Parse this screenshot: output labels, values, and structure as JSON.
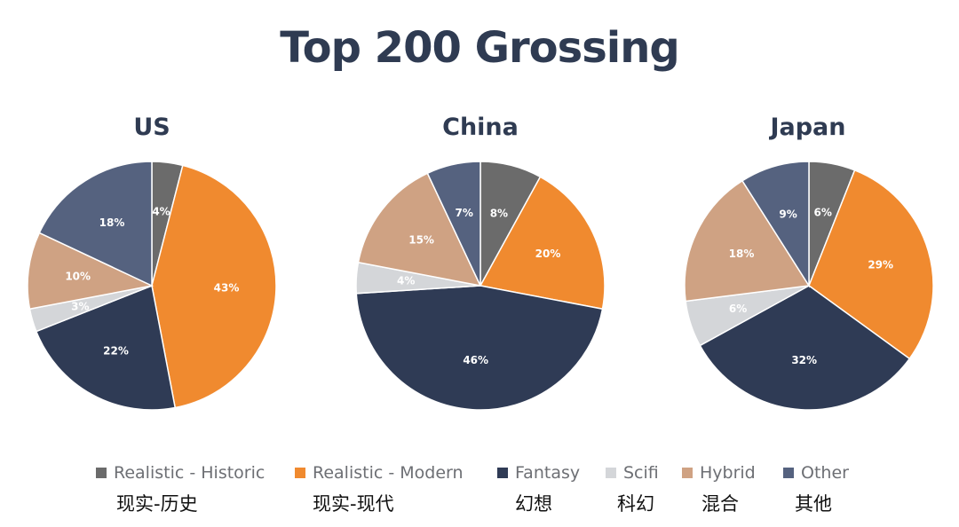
{
  "title": "Top 200 Grossing",
  "colors": {
    "title": "#2f3b52",
    "slice_label": "#ffffff",
    "legend_text": "#6d6f74"
  },
  "legend": [
    {
      "label": "Realistic - Historic",
      "sub": "现实-历史",
      "color": "#6b6b6b"
    },
    {
      "label": "Realistic - Modern",
      "sub": "现实-现代",
      "color": "#f08a2f"
    },
    {
      "label": "Fantasy",
      "sub": "幻想",
      "color": "#2f3b55"
    },
    {
      "label": "Scifi",
      "sub": "科幻",
      "color": "#d4d6d9"
    },
    {
      "label": "Hybrid",
      "sub": "混合",
      "color": "#cfa283"
    },
    {
      "label": "Other",
      "sub": "其他",
      "color": "#55627f"
    }
  ],
  "chart_data": [
    {
      "type": "pie",
      "title": "US",
      "categories": [
        "Realistic - Historic",
        "Realistic - Modern",
        "Fantasy",
        "Scifi",
        "Hybrid",
        "Other"
      ],
      "values": [
        4,
        43,
        22,
        3,
        10,
        18
      ],
      "labels": [
        "4%",
        "43%",
        "22%",
        "3%",
        "10%",
        "18%"
      ]
    },
    {
      "type": "pie",
      "title": "China",
      "categories": [
        "Realistic - Historic",
        "Realistic - Modern",
        "Fantasy",
        "Scifi",
        "Hybrid",
        "Other"
      ],
      "values": [
        8,
        20,
        46,
        4,
        15,
        7
      ],
      "labels": [
        "8%",
        "20%",
        "46%",
        "4%",
        "15%",
        "7%"
      ]
    },
    {
      "type": "pie",
      "title": "Japan",
      "categories": [
        "Realistic - Historic",
        "Realistic - Modern",
        "Fantasy",
        "Scifi",
        "Hybrid",
        "Other"
      ],
      "values": [
        6,
        29,
        32,
        6,
        18,
        9
      ],
      "labels": [
        "6%",
        "29%",
        "32%",
        "6%",
        "18%",
        "9%"
      ]
    }
  ]
}
